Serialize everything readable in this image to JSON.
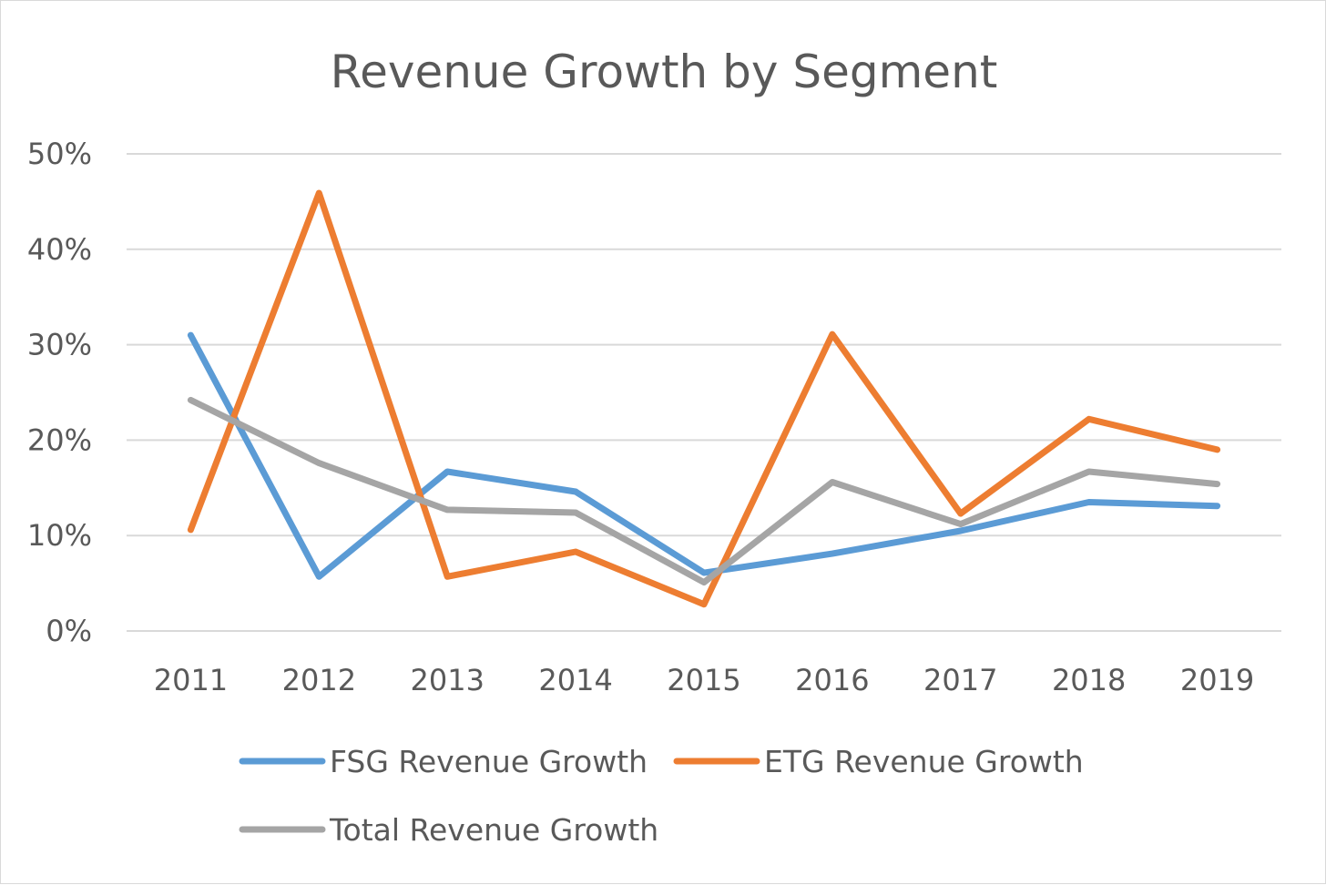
{
  "chart_data": {
    "type": "line",
    "title": "Revenue Growth by Segment",
    "xlabel": "",
    "ylabel": "",
    "categories": [
      "2011",
      "2012",
      "2013",
      "2014",
      "2015",
      "2016",
      "2017",
      "2018",
      "2019"
    ],
    "ylim": [
      0,
      50
    ],
    "yticks": [
      0,
      10,
      20,
      30,
      40,
      50
    ],
    "ytick_labels": [
      "0%",
      "10%",
      "20%",
      "30%",
      "40%",
      "50%"
    ],
    "grid": "horizontal",
    "legend_position": "bottom",
    "series": [
      {
        "name": "FSG Revenue Growth",
        "color": "#5b9bd5",
        "values": [
          31.0,
          5.7,
          16.7,
          14.6,
          6.1,
          8.1,
          10.5,
          13.5,
          13.1
        ]
      },
      {
        "name": "ETG Revenue Growth",
        "color": "#ed7d31",
        "values": [
          10.6,
          45.9,
          5.7,
          8.3,
          2.8,
          31.1,
          12.3,
          22.2,
          19.0
        ]
      },
      {
        "name": "Total Revenue Growth",
        "color": "#a5a5a5",
        "values": [
          24.2,
          17.6,
          12.7,
          12.4,
          5.1,
          15.6,
          11.2,
          16.7,
          15.4
        ]
      }
    ]
  }
}
